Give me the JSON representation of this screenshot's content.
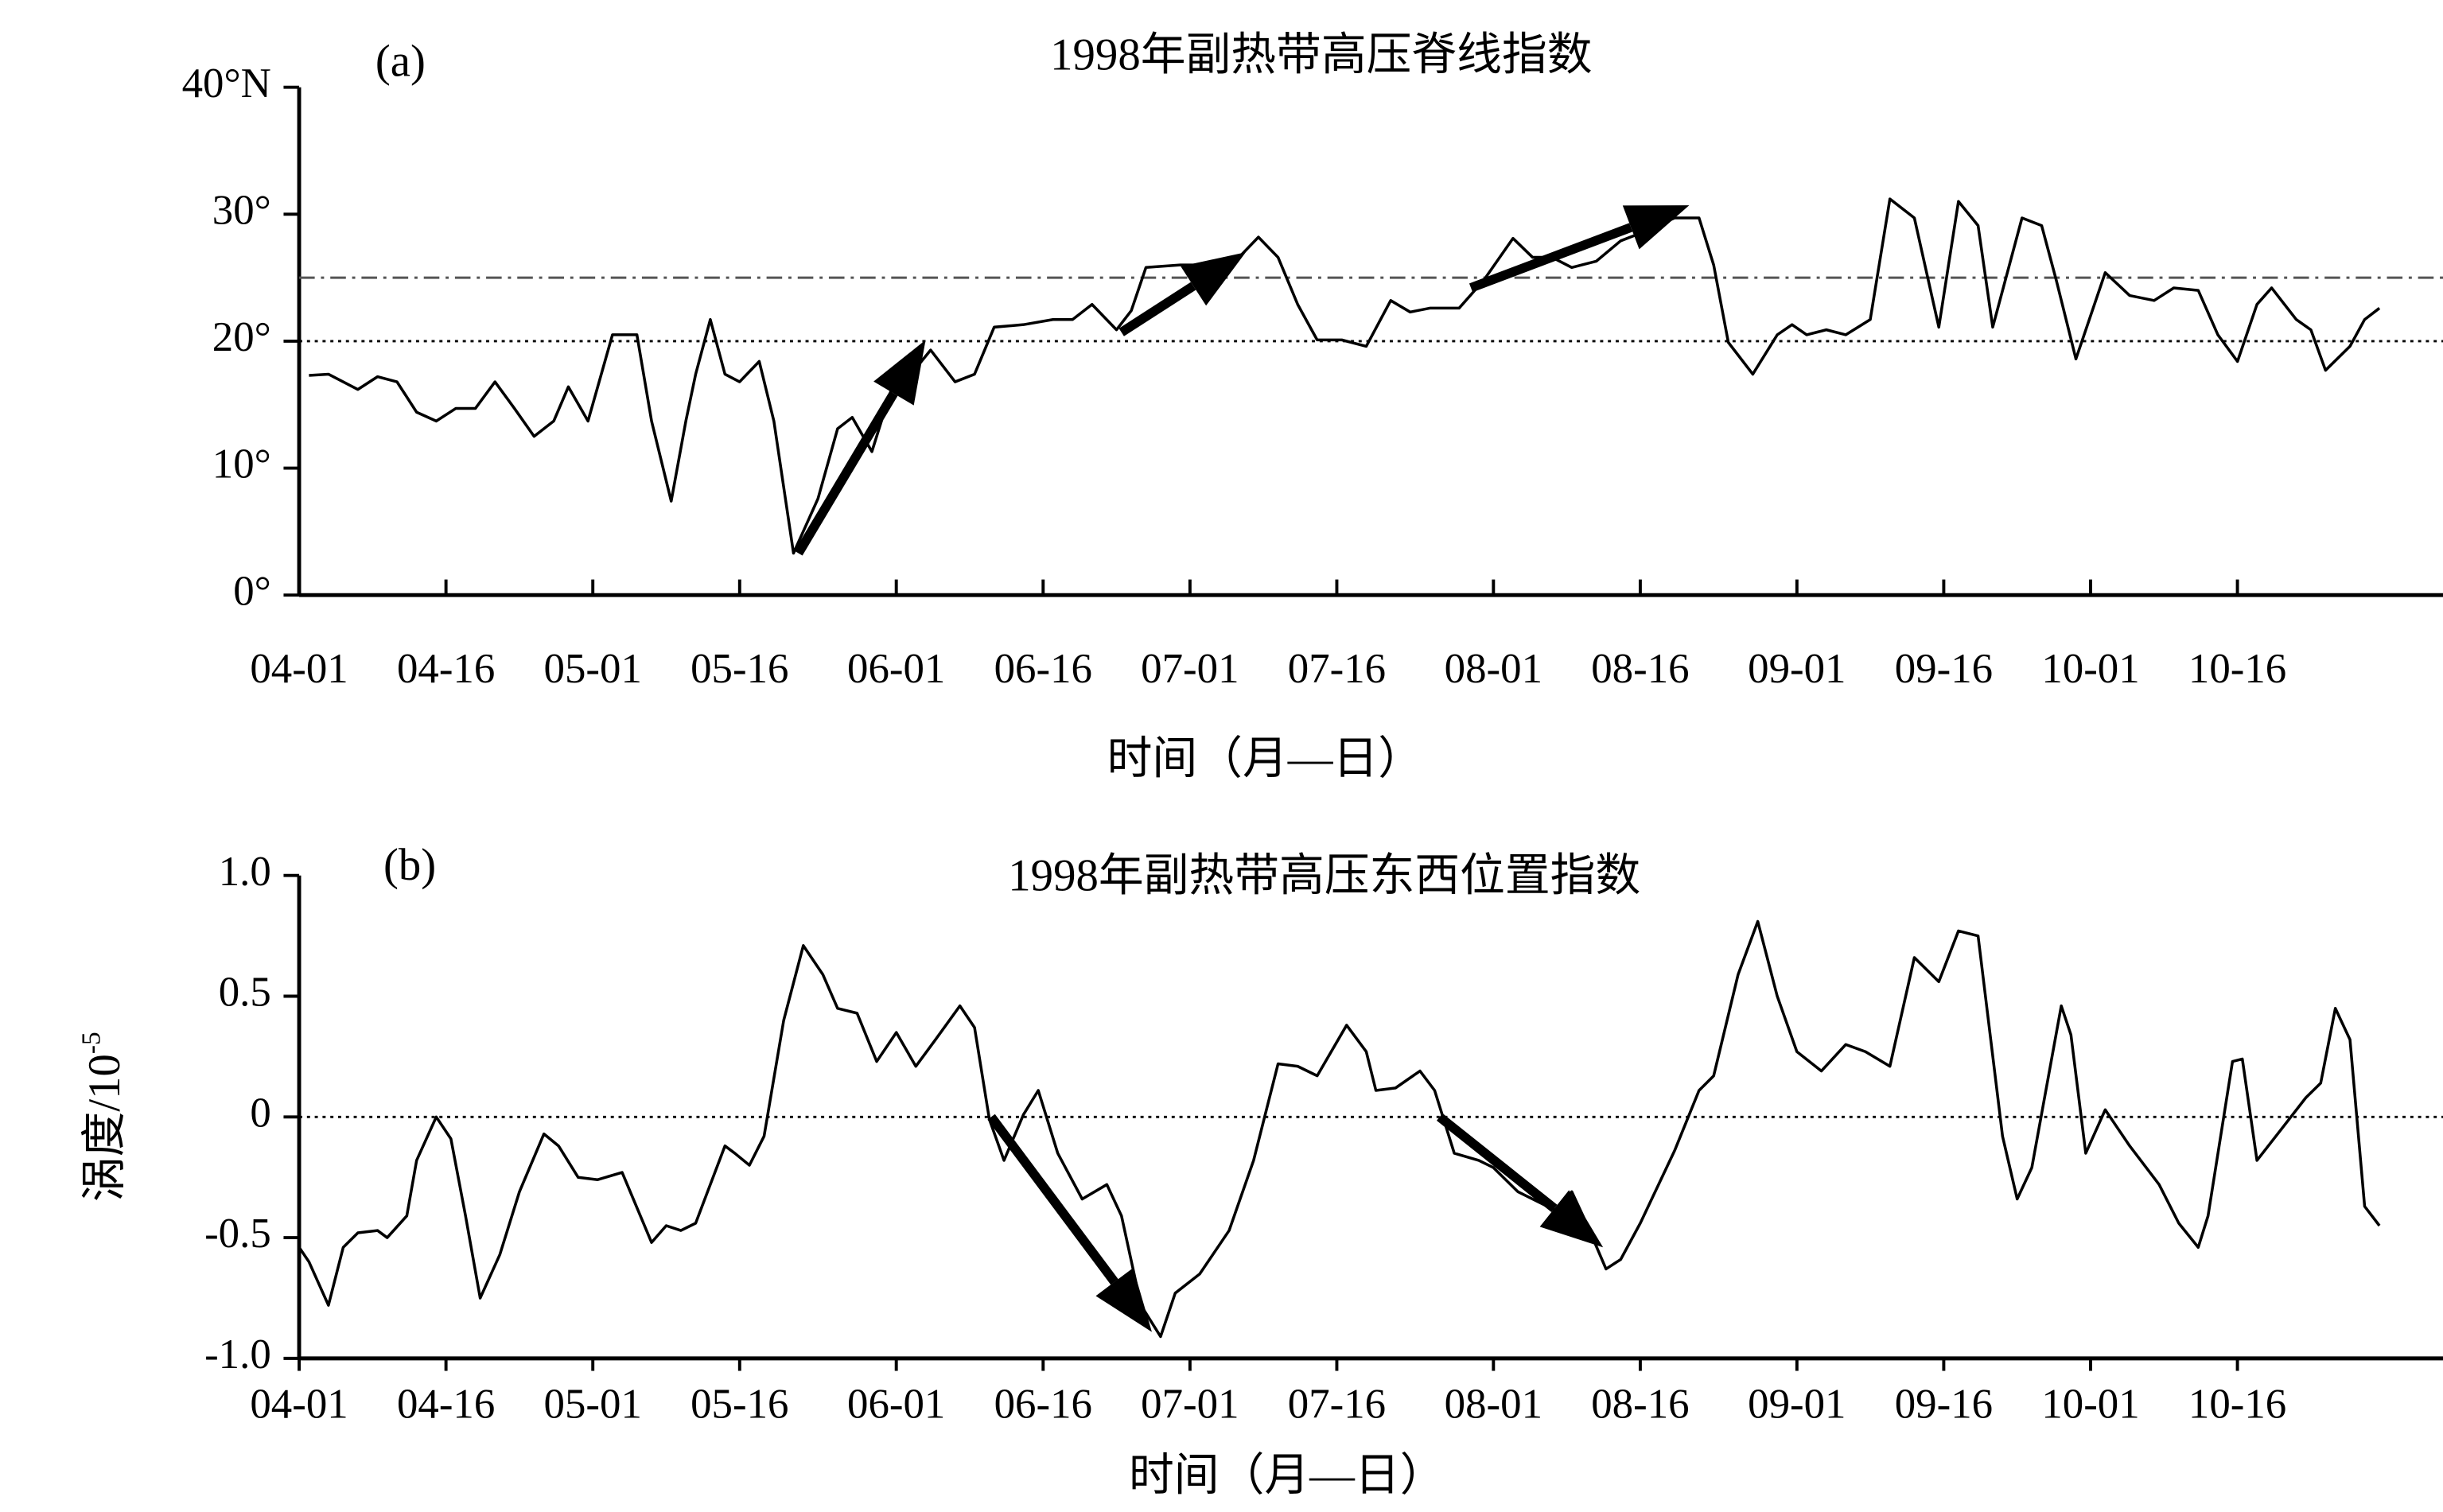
{
  "chart_data": [
    {
      "type": "line",
      "panel_label": "(a)",
      "title": "1998年副热带高压脊线指数",
      "xlabel": "时间（月—日）",
      "xlim": [
        0,
        219
      ],
      "ylim": [
        0,
        40
      ],
      "xticks": [
        {
          "value": 0,
          "label": "04-01"
        },
        {
          "value": 15,
          "label": "04-16"
        },
        {
          "value": 30,
          "label": "05-01"
        },
        {
          "value": 45,
          "label": "05-16"
        },
        {
          "value": 61,
          "label": "06-01"
        },
        {
          "value": 76,
          "label": "06-16"
        },
        {
          "value": 91,
          "label": "07-01"
        },
        {
          "value": 106,
          "label": "07-16"
        },
        {
          "value": 122,
          "label": "08-01"
        },
        {
          "value": 137,
          "label": "08-16"
        },
        {
          "value": 153,
          "label": "09-01"
        },
        {
          "value": 168,
          "label": "09-16"
        },
        {
          "value": 183,
          "label": "10-01"
        },
        {
          "value": 198,
          "label": "10-16"
        }
      ],
      "yticks": [
        {
          "value": 0,
          "label": "0°"
        },
        {
          "value": 10,
          "label": "10°"
        },
        {
          "value": 20,
          "label": "20°"
        },
        {
          "value": 30,
          "label": "30°"
        },
        {
          "value": 40,
          "label": "40°N"
        }
      ],
      "hlines": [
        {
          "value": 25,
          "style": "dashdot",
          "color": "#555"
        },
        {
          "value": 20,
          "style": "dotted",
          "color": "#000"
        }
      ],
      "color": "#000",
      "x": [
        1,
        3,
        6,
        8,
        10,
        12,
        14,
        16,
        18,
        20,
        22,
        24,
        26,
        27.5,
        29.5,
        32,
        34.5,
        36,
        38,
        39.5,
        40.5,
        42,
        43.5,
        45,
        47,
        48.5,
        50.5,
        53,
        55,
        56.5,
        58.5,
        60.5,
        62.5,
        64.5,
        67,
        69,
        71,
        74,
        77,
        79,
        81,
        83.5,
        85,
        86.5,
        90,
        93,
        96,
        98,
        100,
        102,
        104,
        106.5,
        109,
        111.5,
        113.5,
        115.5,
        118.5,
        121,
        124,
        126,
        128,
        130,
        132.5,
        135,
        137,
        140.5,
        143,
        144.5,
        146,
        148.5,
        151,
        152.5,
        154,
        156,
        158,
        160.5,
        162.5,
        165,
        167.5,
        169.5,
        171.5,
        173,
        176,
        178,
        179.5,
        181.5,
        184.5,
        187,
        189.5,
        191.5,
        194,
        196,
        198,
        200,
        201.5,
        204,
        205.5,
        207,
        209.5,
        211,
        212.5
      ],
      "values": [
        17.3,
        17.4,
        16.2,
        17.2,
        16.8,
        14.4,
        13.7,
        14.7,
        14.7,
        16.8,
        14.7,
        12.5,
        13.7,
        16.4,
        13.7,
        20.5,
        20.5,
        13.7,
        7.4,
        13.7,
        17.4,
        21.7,
        17.4,
        16.8,
        18.4,
        13.7,
        3.3,
        7.6,
        13.1,
        14.0,
        11.3,
        16.2,
        17.4,
        19.3,
        16.8,
        17.4,
        21.1,
        21.3,
        21.7,
        21.7,
        22.9,
        20.9,
        22.4,
        25.8,
        26.0,
        26.0,
        26.6,
        28.2,
        26.6,
        22.9,
        20.1,
        20.1,
        19.6,
        23.2,
        22.3,
        22.6,
        22.6,
        24.8,
        28.1,
        26.6,
        26.6,
        25.8,
        26.3,
        27.9,
        28.5,
        29.7,
        29.7,
        26.0,
        19.9,
        17.4,
        20.5,
        21.3,
        20.5,
        20.9,
        20.5,
        21.7,
        31.2,
        29.7,
        21.1,
        31.0,
        29.1,
        21.1,
        29.7,
        29.1,
        24.8,
        18.6,
        25.4,
        23.6,
        23.2,
        24.2,
        24.0,
        20.5,
        18.4,
        22.9,
        24.2,
        21.7,
        20.9,
        17.7,
        19.6,
        21.7,
        22.6
      ],
      "arrows": [
        {
          "from": [
            51,
            3.3
          ],
          "to": [
            64,
            20.1
          ]
        },
        {
          "from": [
            84,
            20.7
          ],
          "to": [
            96.7,
            27.0
          ]
        },
        {
          "from": [
            119.7,
            24.2
          ],
          "to": [
            142,
            30.7
          ]
        }
      ]
    },
    {
      "type": "line",
      "panel_label": "(b)",
      "title": "1998年副热带高压东西位置指数",
      "xlabel": "时间（月—日）",
      "ylabel": "涡度/10",
      "ylabel_exponent": "-5",
      "xlim": [
        0,
        219
      ],
      "ylim": [
        -1.0,
        1.0
      ],
      "xticks": [
        {
          "value": 0,
          "label": "04-01"
        },
        {
          "value": 15,
          "label": "04-16"
        },
        {
          "value": 30,
          "label": "05-01"
        },
        {
          "value": 45,
          "label": "05-16"
        },
        {
          "value": 61,
          "label": "06-01"
        },
        {
          "value": 76,
          "label": "06-16"
        },
        {
          "value": 91,
          "label": "07-01"
        },
        {
          "value": 106,
          "label": "07-16"
        },
        {
          "value": 122,
          "label": "08-01"
        },
        {
          "value": 137,
          "label": "08-16"
        },
        {
          "value": 153,
          "label": "09-01"
        },
        {
          "value": 168,
          "label": "09-16"
        },
        {
          "value": 183,
          "label": "10-01"
        },
        {
          "value": 198,
          "label": "10-16"
        }
      ],
      "yticks": [
        {
          "value": -1.0,
          "label": "-1.0"
        },
        -0.5,
        0,
        0.5,
        {
          "value": 1.0,
          "label": "1.0"
        }
      ],
      "hlines": [
        {
          "value": 0,
          "style": "dotted",
          "color": "#000"
        }
      ],
      "color": "#000",
      "x": [
        0,
        1,
        3,
        4.5,
        6,
        8,
        9,
        11,
        12,
        14,
        15.5,
        17,
        18.5,
        20.5,
        22.5,
        25,
        26.5,
        28.5,
        30.5,
        33,
        36,
        37.5,
        39,
        40.5,
        43.5,
        44.5,
        46,
        47.5,
        49.5,
        51.5,
        53.5,
        55,
        57,
        59,
        61,
        63,
        65,
        67.5,
        69,
        70.5,
        72,
        74,
        75.5,
        77.5,
        80,
        82.5,
        84,
        86,
        88,
        89.5,
        92,
        95,
        97.5,
        100,
        102,
        104,
        107,
        109,
        110,
        112,
        114.5,
        116,
        118,
        120.5,
        122,
        124.5,
        128.5,
        130,
        131.5,
        133.5,
        135,
        137,
        140.5,
        143,
        144.5,
        147,
        149,
        151,
        153,
        155.5,
        158,
        160,
        162.5,
        165,
        167.5,
        169.5,
        171.5,
        174,
        175.5,
        177,
        180,
        181,
        182.5,
        184.5,
        187,
        190,
        192,
        194,
        195,
        197.5,
        198.5,
        200,
        202.5,
        205,
        206.5,
        208,
        209.5,
        211,
        212.5
      ],
      "values": [
        -0.54,
        -0.6,
        -0.78,
        -0.54,
        -0.48,
        -0.47,
        -0.5,
        -0.41,
        -0.18,
        0.0,
        -0.09,
        -0.41,
        -0.75,
        -0.57,
        -0.31,
        -0.07,
        -0.12,
        -0.25,
        -0.26,
        -0.23,
        -0.52,
        -0.45,
        -0.47,
        -0.44,
        -0.12,
        -0.15,
        -0.2,
        -0.08,
        0.4,
        0.71,
        0.59,
        0.45,
        0.43,
        0.23,
        0.35,
        0.21,
        0.32,
        0.46,
        0.37,
        -0.01,
        -0.18,
        0.01,
        0.11,
        -0.15,
        -0.34,
        -0.28,
        -0.41,
        -0.78,
        -0.91,
        -0.73,
        -0.65,
        -0.47,
        -0.18,
        0.22,
        0.21,
        0.17,
        0.38,
        0.27,
        0.11,
        0.12,
        0.19,
        0.11,
        -0.15,
        -0.18,
        -0.21,
        -0.31,
        -0.39,
        -0.31,
        -0.44,
        -0.63,
        -0.59,
        -0.44,
        -0.14,
        0.11,
        0.17,
        0.59,
        0.81,
        0.5,
        0.27,
        0.19,
        0.3,
        0.27,
        0.21,
        0.66,
        0.56,
        0.77,
        0.75,
        -0.08,
        -0.34,
        -0.21,
        0.46,
        0.34,
        -0.15,
        0.03,
        -0.12,
        -0.28,
        -0.44,
        -0.54,
        -0.41,
        0.23,
        0.24,
        -0.18,
        -0.05,
        0.08,
        0.14,
        0.45,
        0.32,
        -0.37,
        -0.45
      ],
      "arrows": [
        {
          "from": [
            70.7,
            0
          ],
          "to": [
            87.1,
            -0.89
          ]
        },
        {
          "from": [
            116.5,
            0
          ],
          "to": [
            133.2,
            -0.54
          ]
        }
      ]
    }
  ]
}
